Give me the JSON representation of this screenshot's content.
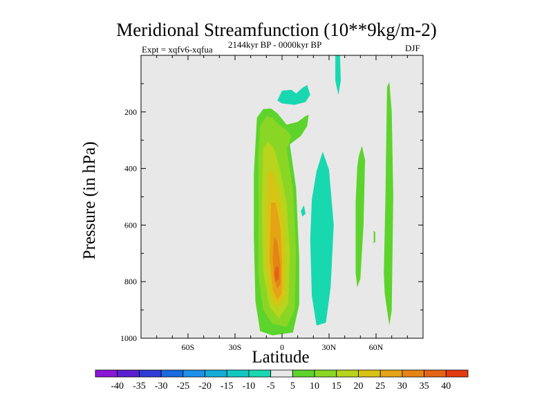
{
  "chart_data": {
    "type": "heatmap",
    "title": "Meridional Streamfunction (10**9kg/m-2)",
    "subtitle_left": "Expt = xqfv6-xqfua",
    "subtitle_center": "2144kyr BP - 0000kyr BP",
    "subtitle_right": "DJF",
    "xlabel": "Latitude",
    "ylabel": "Pressure (in hPa)",
    "xlim": [
      -90,
      90
    ],
    "ylim": [
      1000,
      0
    ],
    "x_ticks": [
      {
        "value": -60,
        "label": "60S"
      },
      {
        "value": -30,
        "label": "30S"
      },
      {
        "value": 0,
        "label": "0"
      },
      {
        "value": 30,
        "label": "30N"
      },
      {
        "value": 60,
        "label": "60N"
      }
    ],
    "y_ticks": [
      {
        "value": 200,
        "label": "200"
      },
      {
        "value": 400,
        "label": "400"
      },
      {
        "value": 600,
        "label": "600"
      },
      {
        "value": 800,
        "label": "800"
      },
      {
        "value": 1000,
        "label": "1000"
      }
    ],
    "colorbar": {
      "labels": [
        "-40",
        "-35",
        "-30",
        "-25",
        "-20",
        "-15",
        "-10",
        "-5",
        "5",
        "10",
        "15",
        "20",
        "25",
        "30",
        "35",
        "40"
      ],
      "colors": [
        "#8a16d8",
        "#5a1fd0",
        "#2e3bd6",
        "#1a6ae0",
        "#1e90e8",
        "#15acd8",
        "#12c8c2",
        "#18d8b0",
        "#e8e8e8",
        "#5cd42c",
        "#8ad624",
        "#b8d41c",
        "#d8c414",
        "#e4a416",
        "#e48414",
        "#e46416",
        "#e43c10"
      ]
    },
    "background_color": "#e8e8e8",
    "regions": [
      {
        "label": "-5",
        "color": "#18d8b0",
        "polygons": [
          [
            [
              -3,
              160
            ],
            [
              0,
              125
            ],
            [
              6,
              122
            ],
            [
              9,
              135
            ],
            [
              13,
              115
            ],
            [
              16,
              105
            ],
            [
              18,
              140
            ],
            [
              15,
              165
            ],
            [
              8,
              175
            ],
            [
              0,
              170
            ]
          ],
          [
            [
              34,
              0
            ],
            [
              37,
              0
            ],
            [
              37.5,
              90
            ],
            [
              36,
              140
            ],
            [
              34,
              90
            ]
          ],
          [
            [
              19,
              510
            ],
            [
              22,
              410
            ],
            [
              26,
              340
            ],
            [
              30,
              405
            ],
            [
              33,
              600
            ],
            [
              31,
              820
            ],
            [
              28,
              945
            ],
            [
              22,
              955
            ],
            [
              19,
              850
            ],
            [
              18,
              650
            ]
          ],
          [
            [
              12,
              550
            ],
            [
              14,
              530
            ],
            [
              15,
              560
            ],
            [
              13,
              570
            ]
          ]
        ]
      },
      {
        "label": "5",
        "color": "#5cd42c",
        "polygons": [
          [
            [
              -16,
              220
            ],
            [
              -12,
              190
            ],
            [
              -7,
              188
            ],
            [
              -3,
              205
            ],
            [
              3,
              245
            ],
            [
              10,
              235
            ],
            [
              15,
              215
            ],
            [
              17,
              210
            ],
            [
              16,
              250
            ],
            [
              12,
              285
            ],
            [
              5,
              315
            ],
            [
              9,
              470
            ],
            [
              11,
              720
            ],
            [
              11,
              880
            ],
            [
              7,
              980
            ],
            [
              0,
              985
            ],
            [
              -6,
              990
            ],
            [
              -14,
              975
            ],
            [
              -17,
              870
            ],
            [
              -18,
              640
            ],
            [
              -18,
              420
            ]
          ],
          [
            [
              49,
              355
            ],
            [
              51,
              320
            ],
            [
              53,
              370
            ],
            [
              52,
              600
            ],
            [
              50,
              790
            ],
            [
              48,
              820
            ],
            [
              47,
              770
            ],
            [
              47,
              520
            ],
            [
              48,
              395
            ]
          ],
          [
            [
              67,
              110
            ],
            [
              68.5,
              95
            ],
            [
              70,
              200
            ],
            [
              71,
              500
            ],
            [
              70,
              900
            ],
            [
              68.5,
              955
            ],
            [
              67,
              900
            ],
            [
              65.5,
              840
            ],
            [
              65,
              770
            ],
            [
              66,
              500
            ]
          ],
          [
            [
              58.5,
              620
            ],
            [
              59.5,
              625
            ],
            [
              59.5,
              660
            ],
            [
              58.5,
              665
            ]
          ]
        ]
      },
      {
        "label": "10",
        "color": "#8ad624",
        "polygons": [
          [
            [
              -14,
              250
            ],
            [
              -10,
              215
            ],
            [
              -6,
              220
            ],
            [
              -3,
              240
            ],
            [
              3,
              265
            ],
            [
              6,
              285
            ],
            [
              3,
              330
            ],
            [
              7,
              480
            ],
            [
              9,
              700
            ],
            [
              8,
              900
            ],
            [
              3,
              960
            ],
            [
              -6,
              950
            ],
            [
              -12,
              900
            ],
            [
              -15,
              780
            ],
            [
              -15,
              550
            ],
            [
              -15,
              350
            ]
          ]
        ]
      },
      {
        "label": "15",
        "color": "#b8d41c",
        "polygons": [
          [
            [
              -12,
              330
            ],
            [
              -9,
              305
            ],
            [
              -5,
              330
            ],
            [
              -1,
              410
            ],
            [
              3,
              525
            ],
            [
              5,
              700
            ],
            [
              4,
              880
            ],
            [
              -2,
              930
            ],
            [
              -8,
              890
            ],
            [
              -12,
              760
            ],
            [
              -13,
              540
            ]
          ]
        ]
      },
      {
        "label": "20",
        "color": "#d8c414",
        "polygons": [
          [
            [
              -9,
              420
            ],
            [
              -6,
              405
            ],
            [
              -3,
              465
            ],
            [
              0,
              550
            ],
            [
              2,
              690
            ],
            [
              2,
              850
            ],
            [
              -3,
              895
            ],
            [
              -7,
              860
            ],
            [
              -10,
              740
            ],
            [
              -10,
              560
            ]
          ]
        ]
      },
      {
        "label": "25",
        "color": "#e4a416",
        "polygons": [
          [
            [
              -7,
              520
            ],
            [
              -4,
              520
            ],
            [
              -1,
              610
            ],
            [
              0,
              720
            ],
            [
              0,
              840
            ],
            [
              -3,
              865
            ],
            [
              -6,
              830
            ],
            [
              -8,
              720
            ]
          ]
        ]
      },
      {
        "label": "30",
        "color": "#e48414",
        "polygons": [
          [
            [
              -5,
              640
            ],
            [
              -3,
              660
            ],
            [
              -1,
              740
            ],
            [
              -1,
              810
            ],
            [
              -3,
              825
            ],
            [
              -5,
              790
            ],
            [
              -6,
              710
            ]
          ]
        ]
      },
      {
        "label": "35",
        "color": "#e46416",
        "polygons": [
          [
            [
              -4,
              745
            ],
            [
              -2,
              750
            ],
            [
              -2,
              790
            ],
            [
              -4,
              800
            ],
            [
              -5,
              775
            ]
          ]
        ]
      }
    ]
  }
}
